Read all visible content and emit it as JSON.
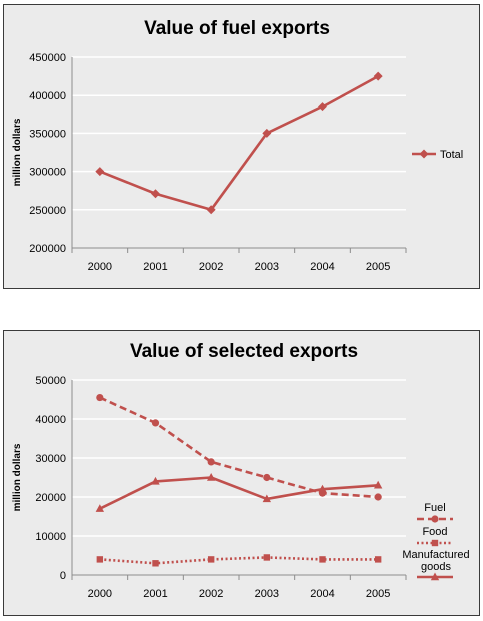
{
  "colors": {
    "series": "#c0504d",
    "panel_bg": "#ebebeb",
    "grid": "#ffffff"
  },
  "chart_data": [
    {
      "type": "line",
      "title": "Value of fuel exports",
      "xlabel": "",
      "ylabel": "million dollars",
      "x": [
        "2000",
        "2001",
        "2002",
        "2003",
        "2004",
        "2005"
      ],
      "ylim": [
        200000,
        450000
      ],
      "yticks": [
        "200000",
        "250000",
        "300000",
        "350000",
        "400000",
        "450000"
      ],
      "legend_position": "right",
      "grid": true,
      "series": [
        {
          "name": "Total",
          "values": [
            300000,
            271000,
            250000,
            350000,
            385000,
            425000
          ],
          "marker": "diamond",
          "dash": "solid"
        }
      ]
    },
    {
      "type": "line",
      "title": "Value of selected exports",
      "xlabel": "",
      "ylabel": "million dollars",
      "x": [
        "2000",
        "2001",
        "2002",
        "2003",
        "2004",
        "2005"
      ],
      "ylim": [
        0,
        50000
      ],
      "yticks": [
        "0",
        "10000",
        "20000",
        "30000",
        "40000",
        "50000"
      ],
      "legend_position": "right",
      "grid": true,
      "series": [
        {
          "name": "Fuel",
          "values": [
            45500,
            39000,
            29000,
            25000,
            21000,
            20000
          ],
          "marker": "circle",
          "dash": "dashed"
        },
        {
          "name": "Food",
          "values": [
            4000,
            3000,
            4000,
            4500,
            4000,
            4000
          ],
          "marker": "square",
          "dash": "dotted"
        },
        {
          "name": "Manufactured goods",
          "values": [
            17000,
            24000,
            25000,
            19500,
            22000,
            23000
          ],
          "marker": "triangle",
          "dash": "solid"
        }
      ]
    }
  ]
}
